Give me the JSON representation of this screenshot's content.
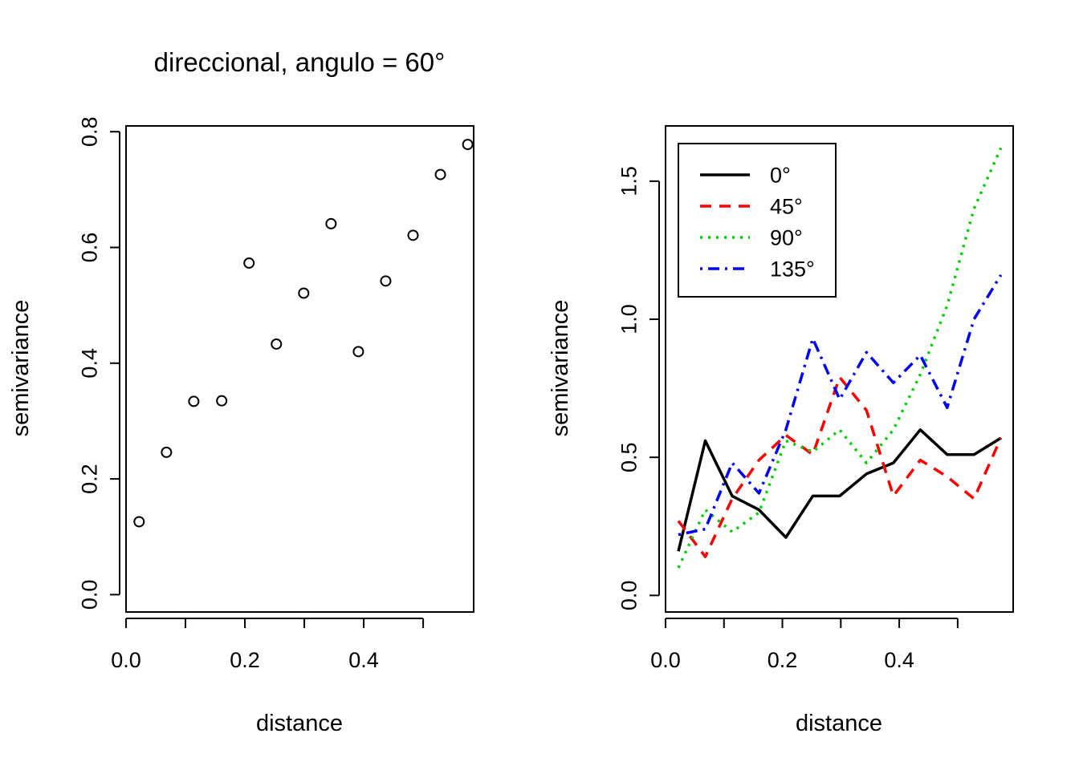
{
  "chart_data": [
    {
      "type": "scatter",
      "title": "direccional, angulo = 60°",
      "xlabel": "distance",
      "ylabel": "semivariance",
      "xlim": [
        0.0,
        0.585
      ],
      "ylim": [
        -0.03,
        0.81
      ],
      "xticks": [
        0.0,
        0.1,
        0.2,
        0.3,
        0.4,
        0.5
      ],
      "xtick_labels": [
        "0.0",
        "",
        "0.2",
        "",
        "0.4",
        ""
      ],
      "yticks": [
        0.0,
        0.2,
        0.4,
        0.6,
        0.8
      ],
      "ytick_labels": [
        "0.0",
        "0.2",
        "0.4",
        "0.6",
        "0.8"
      ],
      "x": [
        0.022,
        0.068,
        0.114,
        0.161,
        0.207,
        0.253,
        0.299,
        0.345,
        0.391,
        0.437,
        0.483,
        0.529,
        0.575
      ],
      "y": [
        0.126,
        0.246,
        0.334,
        0.335,
        0.573,
        0.433,
        0.521,
        0.641,
        0.42,
        0.542,
        0.621,
        0.726,
        0.778
      ]
    },
    {
      "type": "line",
      "title": "",
      "xlabel": "distance",
      "ylabel": "semivariance",
      "xlim": [
        0.0,
        0.595
      ],
      "ylim": [
        -0.06,
        1.7
      ],
      "xticks": [
        0.0,
        0.1,
        0.2,
        0.3,
        0.4,
        0.5
      ],
      "xtick_labels": [
        "0.0",
        "",
        "0.2",
        "",
        "0.4",
        ""
      ],
      "yticks": [
        0.0,
        0.5,
        1.0,
        1.5
      ],
      "ytick_labels": [
        "0.0",
        "0.5",
        "1.0",
        "1.5"
      ],
      "x": [
        0.022,
        0.068,
        0.114,
        0.16,
        0.206,
        0.252,
        0.298,
        0.344,
        0.39,
        0.436,
        0.482,
        0.528,
        0.574
      ],
      "legend_position": "top-left",
      "series": [
        {
          "name": "0°",
          "color": "#000000",
          "dash": "solid",
          "values": [
            0.16,
            0.56,
            0.36,
            0.31,
            0.21,
            0.36,
            0.36,
            0.44,
            0.48,
            0.6,
            0.51,
            0.51,
            0.57
          ]
        },
        {
          "name": "45°",
          "color": "#ff0000",
          "dash": "dashed",
          "values": [
            0.27,
            0.14,
            0.35,
            0.49,
            0.58,
            0.51,
            0.79,
            0.67,
            0.36,
            0.49,
            0.43,
            0.35,
            0.57
          ]
        },
        {
          "name": "90°",
          "color": "#00cd00",
          "dash": "dotted",
          "values": [
            0.1,
            0.31,
            0.23,
            0.3,
            0.56,
            0.52,
            0.6,
            0.48,
            0.6,
            0.8,
            1.05,
            1.4,
            1.62
          ]
        },
        {
          "name": "135°",
          "color": "#0000ff",
          "dash": "dotdash",
          "values": [
            0.22,
            0.24,
            0.48,
            0.37,
            0.6,
            0.93,
            0.71,
            0.88,
            0.77,
            0.87,
            0.68,
            1.0,
            1.16
          ]
        }
      ]
    }
  ]
}
